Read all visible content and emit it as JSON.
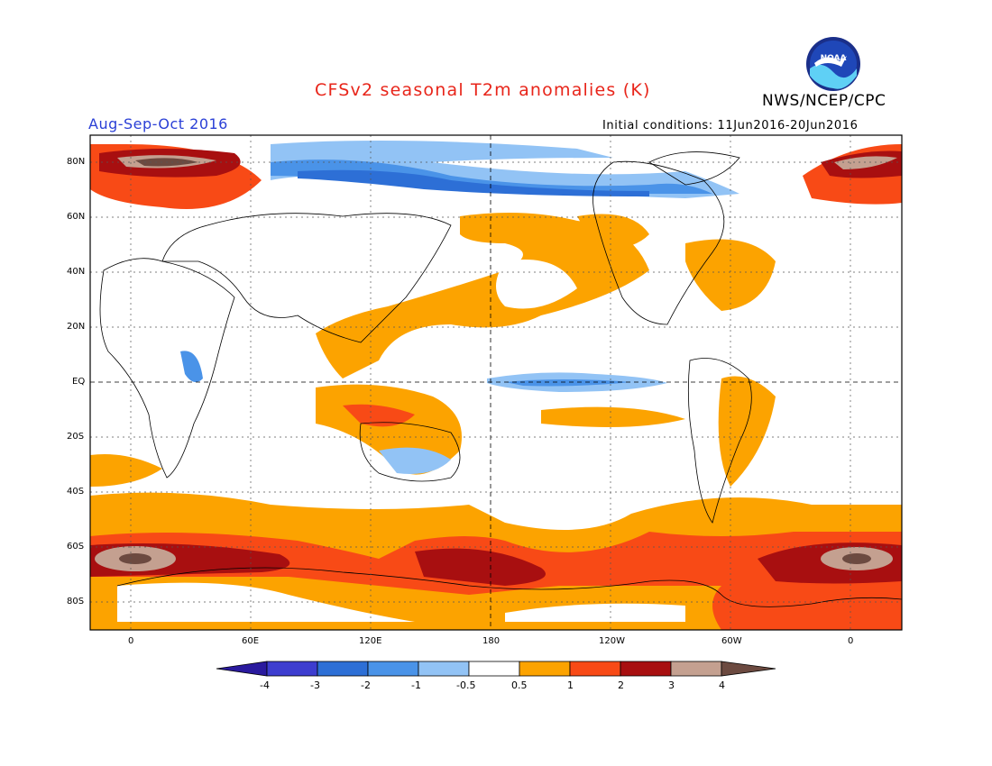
{
  "title": "CFSv2 seasonal T2m anomalies (K)",
  "agency": "NWS/NCEP/CPC",
  "logo_text": "NOAA",
  "season": "Aug-Sep-Oct 2016",
  "initial_conditions": "Initial conditions: 11Jun2016-20Jun2016",
  "lat_labels": [
    "80N",
    "60N",
    "40N",
    "20N",
    "EQ",
    "20S",
    "40S",
    "60S",
    "80S"
  ],
  "lon_labels": [
    "0",
    "60E",
    "120E",
    "180",
    "120W",
    "60W",
    "0"
  ],
  "colorbar": {
    "labels": [
      "-4",
      "-3",
      "-2",
      "-1",
      "-0.5",
      "0.5",
      "1",
      "2",
      "3",
      "4"
    ],
    "colors": [
      "#2a1a9e",
      "#3d3dcf",
      "#2d6fd6",
      "#4a93e8",
      "#92c3f5",
      "#ffffff",
      "#fca300",
      "#f84a16",
      "#a80f10",
      "#c4a090",
      "#6c4a40"
    ]
  },
  "colors": {
    "land_outline": "#000000",
    "grid": "#555555"
  }
}
